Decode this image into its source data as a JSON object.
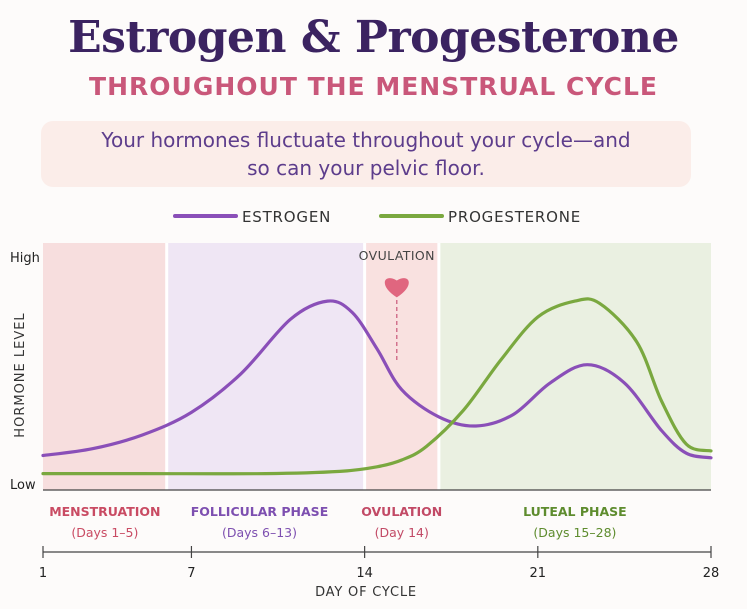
{
  "header": {
    "title": "Estrogen & Progesterone",
    "subtitle": "THROUGHOUT THE MENSTRUAL CYCLE"
  },
  "banner": {
    "text": "Your hormones fluctuate throughout your cycle—and so can your pelvic floor."
  },
  "colors": {
    "estrogen": "#8a4fb8",
    "progesterone": "#7aa83f",
    "menstruation": "#c94b63",
    "follicular": "#7d4fb0",
    "ovulation": "#c24a66",
    "luteal": "#5e8c2e"
  },
  "chart_data": {
    "type": "line",
    "title": "Estrogen & Progesterone",
    "subtitle": "THROUGHOUT THE MENSTRUAL CYCLE",
    "xlabel": "DAY OF CYCLE",
    "ylabel": "HORMONE LEVEL",
    "xlim": [
      1,
      28
    ],
    "ylim": [
      0,
      1
    ],
    "xticks": [
      1,
      7,
      14,
      21,
      28
    ],
    "yticks": [
      {
        "value": 1,
        "label": "High"
      },
      {
        "value": 0,
        "label": "Low"
      }
    ],
    "legend": "top-center",
    "grid": false,
    "series": [
      {
        "name": "ESTROGEN",
        "x": [
          1,
          3,
          5,
          7,
          9,
          11,
          12.5,
          13.5,
          14.5,
          15.5,
          17,
          18.5,
          20,
          21.5,
          23,
          24.5,
          26,
          27,
          28
        ],
        "y": [
          0.13,
          0.16,
          0.22,
          0.32,
          0.49,
          0.73,
          0.81,
          0.76,
          0.6,
          0.42,
          0.3,
          0.26,
          0.31,
          0.45,
          0.53,
          0.45,
          0.24,
          0.14,
          0.12
        ]
      },
      {
        "name": "PROGESTERONE",
        "x": [
          1,
          5,
          10,
          13,
          14.5,
          15.5,
          16.5,
          18,
          19.5,
          21,
          22.5,
          23.5,
          25,
          26,
          27,
          28
        ],
        "y": [
          0.05,
          0.05,
          0.05,
          0.06,
          0.08,
          0.11,
          0.17,
          0.33,
          0.55,
          0.74,
          0.81,
          0.8,
          0.63,
          0.37,
          0.18,
          0.15
        ]
      }
    ],
    "phases": [
      {
        "label": "MENSTRUATION",
        "days": "(Days 1–5)",
        "start": 1,
        "end": 6,
        "fill": "#f7dede"
      },
      {
        "label": "FOLLICULAR PHASE",
        "days": "(Days 6–13)",
        "start": 6,
        "end": 14,
        "fill": "#efe6f4"
      },
      {
        "label": "OVULATION",
        "days": "(Day 14)",
        "start": 14,
        "end": 17,
        "fill": "#f9e1e0"
      },
      {
        "label": "LUTEAL PHASE",
        "days": "(Days 15–28)",
        "start": 17,
        "end": 28,
        "fill": "#eaf0e1"
      }
    ],
    "annotation": {
      "label": "OVULATION",
      "x": 15.3
    }
  }
}
